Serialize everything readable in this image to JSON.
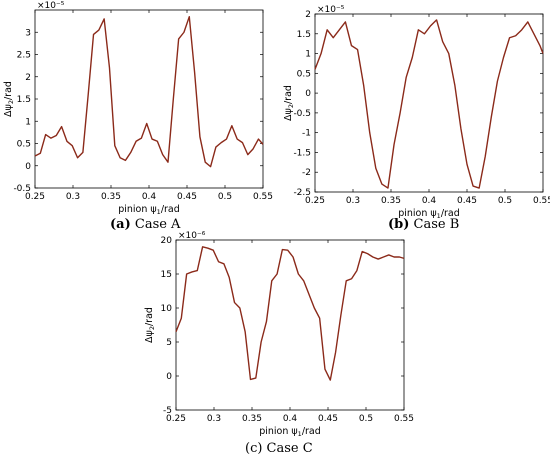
{
  "panels": [
    {
      "caption_letter": "(a)",
      "caption_text": " Case A"
    },
    {
      "caption_letter": "(b)",
      "caption_text": " Case B"
    },
    {
      "caption_letter": "",
      "caption_text": "(c) Case C"
    }
  ],
  "chart_data": [
    {
      "type": "line",
      "xlabel": "pinion ψ1/rad",
      "ylabel": "Δψ2/rad",
      "exponent_label": "×10⁻⁵",
      "xlim": [
        0.25,
        0.55
      ],
      "ylim": [
        -0.5,
        3.5
      ],
      "xticks": [
        0.25,
        0.3,
        0.35,
        0.4,
        0.45,
        0.5,
        0.55
      ],
      "xtick_labels": [
        "0.25",
        "0.3",
        "0.35",
        "0.4",
        "0.45",
        "0.5",
        "0.55"
      ],
      "yticks": [
        -0.5,
        0,
        0.5,
        1,
        1.5,
        2,
        2.5,
        3
      ],
      "ytick_labels": [
        "-0.5",
        "0",
        "0.5",
        "1",
        "1.5",
        "2",
        "2.5",
        "3"
      ],
      "line_color": "#8b2a1a",
      "x": [
        0.25,
        0.257,
        0.264,
        0.271,
        0.278,
        0.285,
        0.292,
        0.299,
        0.306,
        0.313,
        0.32,
        0.327,
        0.334,
        0.341,
        0.348,
        0.355,
        0.362,
        0.369,
        0.376,
        0.383,
        0.39,
        0.397,
        0.404,
        0.411,
        0.418,
        0.425,
        0.432,
        0.439,
        0.446,
        0.453,
        0.46,
        0.467,
        0.474,
        0.481,
        0.488,
        0.495,
        0.502,
        0.509,
        0.516,
        0.523,
        0.53,
        0.537,
        0.544,
        0.55
      ],
      "y": [
        0.22,
        0.28,
        0.7,
        0.62,
        0.68,
        0.88,
        0.55,
        0.45,
        0.18,
        0.3,
        1.6,
        2.95,
        3.05,
        3.3,
        2.2,
        0.45,
        0.18,
        0.12,
        0.3,
        0.55,
        0.62,
        0.95,
        0.6,
        0.55,
        0.25,
        0.08,
        1.5,
        2.85,
        3.0,
        3.35,
        2.1,
        0.65,
        0.08,
        -0.02,
        0.42,
        0.52,
        0.6,
        0.9,
        0.6,
        0.52,
        0.25,
        0.38,
        0.6,
        0.48
      ]
    },
    {
      "type": "line",
      "xlabel": "pinion ψ1/rad",
      "ylabel": "Δψ2/rad",
      "exponent_label": "×10⁻⁵",
      "xlim": [
        0.25,
        0.55
      ],
      "ylim": [
        -2.5,
        2
      ],
      "xticks": [
        0.25,
        0.3,
        0.35,
        0.4,
        0.45,
        0.5,
        0.55
      ],
      "xtick_labels": [
        "0.25",
        "0.3",
        "0.35",
        "0.4",
        "0.45",
        "0.5",
        "0.55"
      ],
      "yticks": [
        -2.5,
        -2,
        -1.5,
        -1,
        -0.5,
        0,
        0.5,
        1,
        1.5,
        2
      ],
      "ytick_labels": [
        "-2.5",
        "-2",
        "-1.5",
        "-1",
        "-0.5",
        "0",
        "0.5",
        "1",
        "1.5",
        "2"
      ],
      "line_color": "#8b2a1a",
      "x": [
        0.25,
        0.258,
        0.266,
        0.274,
        0.282,
        0.29,
        0.298,
        0.306,
        0.314,
        0.322,
        0.33,
        0.338,
        0.346,
        0.354,
        0.362,
        0.37,
        0.378,
        0.386,
        0.394,
        0.402,
        0.41,
        0.418,
        0.426,
        0.434,
        0.442,
        0.45,
        0.458,
        0.466,
        0.474,
        0.482,
        0.49,
        0.498,
        0.506,
        0.514,
        0.522,
        0.53,
        0.538,
        0.546,
        0.55
      ],
      "y": [
        0.6,
        1.0,
        1.6,
        1.4,
        1.6,
        1.8,
        1.2,
        1.1,
        0.2,
        -1.0,
        -1.9,
        -2.3,
        -2.4,
        -1.3,
        -0.5,
        0.4,
        0.9,
        1.6,
        1.5,
        1.7,
        1.85,
        1.3,
        1.0,
        0.2,
        -0.9,
        -1.8,
        -2.35,
        -2.4,
        -1.6,
        -0.6,
        0.3,
        0.9,
        1.4,
        1.45,
        1.6,
        1.8,
        1.5,
        1.2,
        1.0
      ]
    },
    {
      "type": "line",
      "xlabel": "pinion ψ1/rad",
      "ylabel": "Δψ2/rad",
      "exponent_label": "×10⁻⁶",
      "xlim": [
        0.25,
        0.55
      ],
      "ylim": [
        -5,
        20
      ],
      "xticks": [
        0.25,
        0.3,
        0.35,
        0.4,
        0.45,
        0.5,
        0.55
      ],
      "xtick_labels": [
        "0.25",
        "0.3",
        "0.35",
        "0.4",
        "0.45",
        "0.5",
        "0.55"
      ],
      "yticks": [
        -5,
        0,
        5,
        10,
        15,
        20
      ],
      "ytick_labels": [
        "-5",
        "0",
        "5",
        "10",
        "15",
        "20"
      ],
      "line_color": "#8b2a1a",
      "x": [
        0.25,
        0.257,
        0.264,
        0.271,
        0.278,
        0.285,
        0.292,
        0.299,
        0.306,
        0.313,
        0.32,
        0.327,
        0.334,
        0.341,
        0.348,
        0.355,
        0.362,
        0.369,
        0.376,
        0.383,
        0.39,
        0.397,
        0.404,
        0.411,
        0.418,
        0.425,
        0.432,
        0.439,
        0.446,
        0.453,
        0.46,
        0.467,
        0.474,
        0.481,
        0.488,
        0.495,
        0.502,
        0.509,
        0.516,
        0.523,
        0.53,
        0.537,
        0.544,
        0.55
      ],
      "y": [
        6.5,
        8.5,
        15.0,
        15.3,
        15.5,
        19.0,
        18.8,
        18.5,
        16.8,
        16.5,
        14.5,
        10.8,
        10.0,
        6.5,
        -0.5,
        -0.3,
        5.0,
        8.0,
        14.0,
        15.0,
        18.6,
        18.5,
        17.5,
        15.0,
        14.0,
        12.0,
        10.0,
        8.5,
        1.0,
        -0.6,
        3.5,
        9.0,
        14.0,
        14.3,
        15.5,
        18.3,
        18.0,
        17.5,
        17.2,
        17.5,
        17.8,
        17.5,
        17.5,
        17.3
      ]
    }
  ]
}
